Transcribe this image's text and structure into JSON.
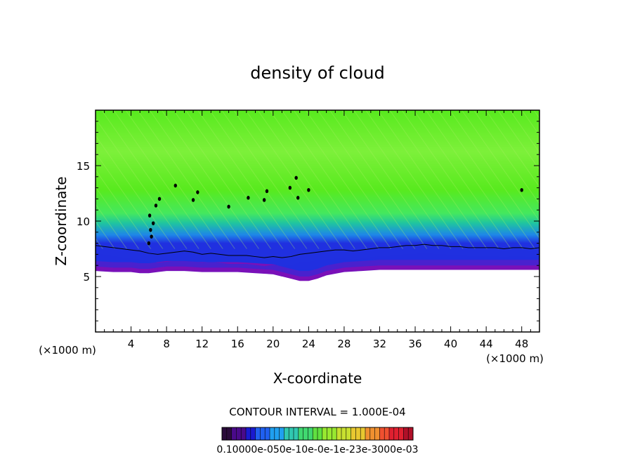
{
  "chart_data": {
    "type": "heatmap",
    "title": "density of cloud",
    "xlabel": "X-coordinate",
    "ylabel": "Z-coordinate",
    "x_unit_left": "(×1000 m)",
    "x_unit_right": "(×1000 m)",
    "xlim": [
      0,
      50
    ],
    "ylim": [
      0,
      20
    ],
    "x_ticks": [
      4,
      8,
      12,
      16,
      20,
      24,
      28,
      32,
      36,
      40,
      44,
      48
    ],
    "y_ticks": [
      5,
      10,
      15
    ],
    "contour_interval_text": "CONTOUR INTERVAL = 1.000E-04",
    "colorbar_label_text": "0.10000e-050e-10e-0e-1e-23e-3000e-03",
    "cloud_base_profile": {
      "x": [
        0,
        2,
        4,
        5,
        6,
        7,
        8,
        10,
        12,
        14,
        16,
        18,
        20,
        21,
        22,
        23,
        24,
        25,
        26,
        28,
        30,
        32,
        34,
        36,
        38,
        40,
        42,
        44,
        46,
        48,
        50
      ],
      "base_z": [
        5.5,
        5.4,
        5.4,
        5.3,
        5.3,
        5.4,
        5.5,
        5.5,
        5.4,
        5.4,
        5.4,
        5.3,
        5.2,
        5.0,
        4.8,
        4.6,
        4.6,
        4.8,
        5.1,
        5.4,
        5.5,
        5.6,
        5.6,
        5.6,
        5.6,
        5.6,
        5.6,
        5.6,
        5.6,
        5.6,
        5.6
      ]
    },
    "contour_line": {
      "x": [
        0,
        1,
        2,
        3,
        4,
        5,
        6,
        7,
        8,
        9,
        10,
        11,
        12,
        13,
        14,
        15,
        16,
        17,
        18,
        19,
        20,
        21,
        22,
        23,
        24,
        25,
        26,
        27,
        28,
        29,
        30,
        31,
        32,
        33,
        34,
        35,
        36,
        37,
        38,
        39,
        40,
        41,
        42,
        43,
        44,
        45,
        46,
        47,
        48,
        49,
        50
      ],
      "z": [
        7.8,
        7.7,
        7.6,
        7.5,
        7.4,
        7.3,
        7.1,
        7.0,
        7.1,
        7.2,
        7.3,
        7.2,
        7.0,
        7.1,
        7.0,
        6.9,
        6.9,
        6.9,
        6.8,
        6.7,
        6.8,
        6.7,
        6.8,
        7.0,
        7.1,
        7.2,
        7.3,
        7.4,
        7.4,
        7.3,
        7.4,
        7.5,
        7.6,
        7.6,
        7.7,
        7.8,
        7.8,
        7.9,
        7.8,
        7.8,
        7.7,
        7.7,
        7.6,
        7.6,
        7.6,
        7.6,
        7.5,
        7.6,
        7.6,
        7.5,
        7.6
      ]
    },
    "cloud_cells": [
      {
        "x": 6.0,
        "z": 8.0
      },
      {
        "x": 6.3,
        "z": 8.6
      },
      {
        "x": 6.2,
        "z": 9.2
      },
      {
        "x": 6.5,
        "z": 9.8
      },
      {
        "x": 6.1,
        "z": 10.5
      },
      {
        "x": 6.8,
        "z": 11.4
      },
      {
        "x": 7.2,
        "z": 12.0
      },
      {
        "x": 9.0,
        "z": 13.2
      },
      {
        "x": 11.5,
        "z": 12.6
      },
      {
        "x": 11.0,
        "z": 11.9
      },
      {
        "x": 15.0,
        "z": 11.3
      },
      {
        "x": 17.2,
        "z": 12.1
      },
      {
        "x": 19.0,
        "z": 11.9
      },
      {
        "x": 19.3,
        "z": 12.7
      },
      {
        "x": 21.9,
        "z": 13.0
      },
      {
        "x": 22.6,
        "z": 13.9
      },
      {
        "x": 22.8,
        "z": 12.1
      },
      {
        "x": 24.0,
        "z": 12.8
      },
      {
        "x": 48.0,
        "z": 12.8
      }
    ],
    "colors": {
      "top": "#58ea1e",
      "upper": "#7df03a",
      "mid": "#44e85e",
      "lower": "#1fc4a0",
      "blue": "#1e86e8",
      "deepblue": "#2030e0",
      "base": "#7a10b8",
      "contour": "#000000"
    },
    "colorbar": [
      "#2a0a3a",
      "#4a0a8a",
      "#1a1ad0",
      "#2060f0",
      "#20a0f0",
      "#30c8b0",
      "#40d870",
      "#60e040",
      "#98e830",
      "#c8e030",
      "#e8c830",
      "#f09030",
      "#f05030",
      "#e02030",
      "#b01028"
    ]
  }
}
